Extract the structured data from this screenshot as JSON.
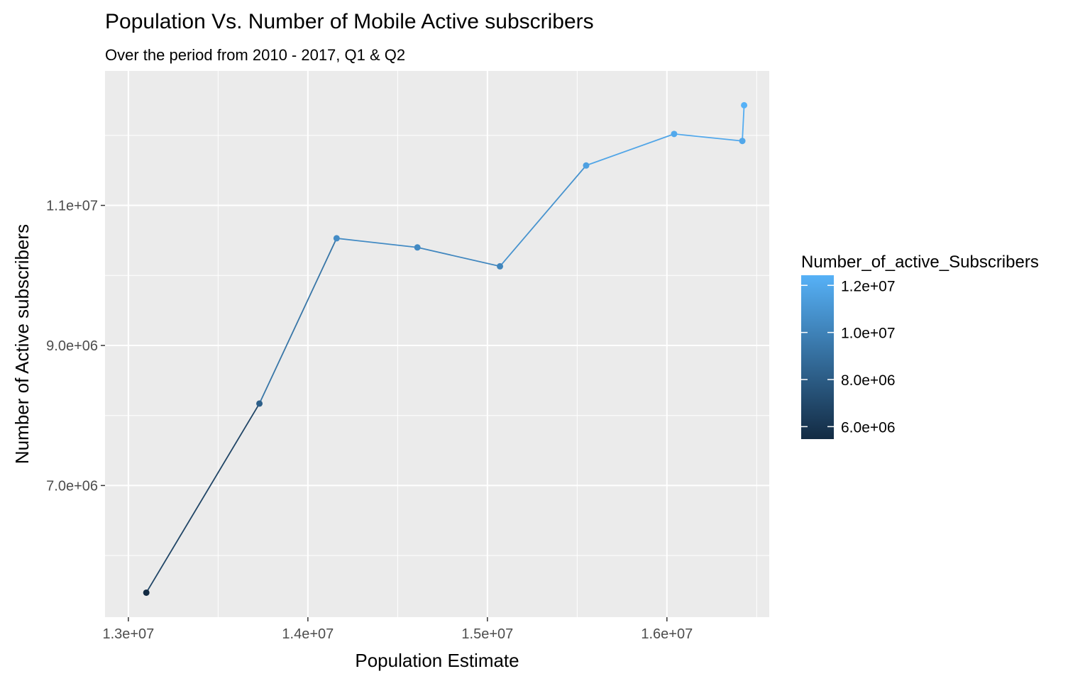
{
  "chart_data": {
    "type": "line",
    "title": "Population Vs. Number of Mobile Active subscribers",
    "subtitle": "Over the period from 2010 - 2017, Q1 & Q2",
    "xlabel": "Population Estimate",
    "ylabel": "Number of Active subscribers",
    "xlim": [
      12870000,
      16570000
    ],
    "ylim": [
      5120000,
      12920000
    ],
    "x_ticks": [
      13000000,
      14000000,
      15000000,
      16000000
    ],
    "x_tick_labels": [
      "1.3e+07",
      "1.4e+07",
      "1.5e+07",
      "1.6e+07"
    ],
    "y_ticks": [
      7000000,
      9000000,
      11000000
    ],
    "y_tick_labels": [
      "7.0e+06",
      "9.0e+06",
      "1.1e+07"
    ],
    "grid": true,
    "series": [
      {
        "x": [
          13100000,
          13730000,
          14160000,
          14610000,
          15070000,
          15550000,
          16040000,
          16420000,
          16430000
        ],
        "y": [
          5470000,
          8170000,
          10530000,
          10400000,
          10130000,
          11570000,
          12020000,
          11920000,
          12430000
        ]
      }
    ],
    "legend": {
      "title": "Number_of_active_Subscribers",
      "placement": "right",
      "type": "colorbar",
      "range": [
        5470000,
        12430000
      ],
      "ticks": [
        6000000,
        8000000,
        10000000,
        12000000
      ],
      "tick_labels": [
        "6.0e+06",
        "8.0e+06",
        "1.0e+07",
        "1.2e+07"
      ],
      "color_low": "#132B43",
      "color_high": "#56B1F7"
    },
    "panel_color": "#EBEBEB",
    "grid_color": "#FFFFFF"
  }
}
